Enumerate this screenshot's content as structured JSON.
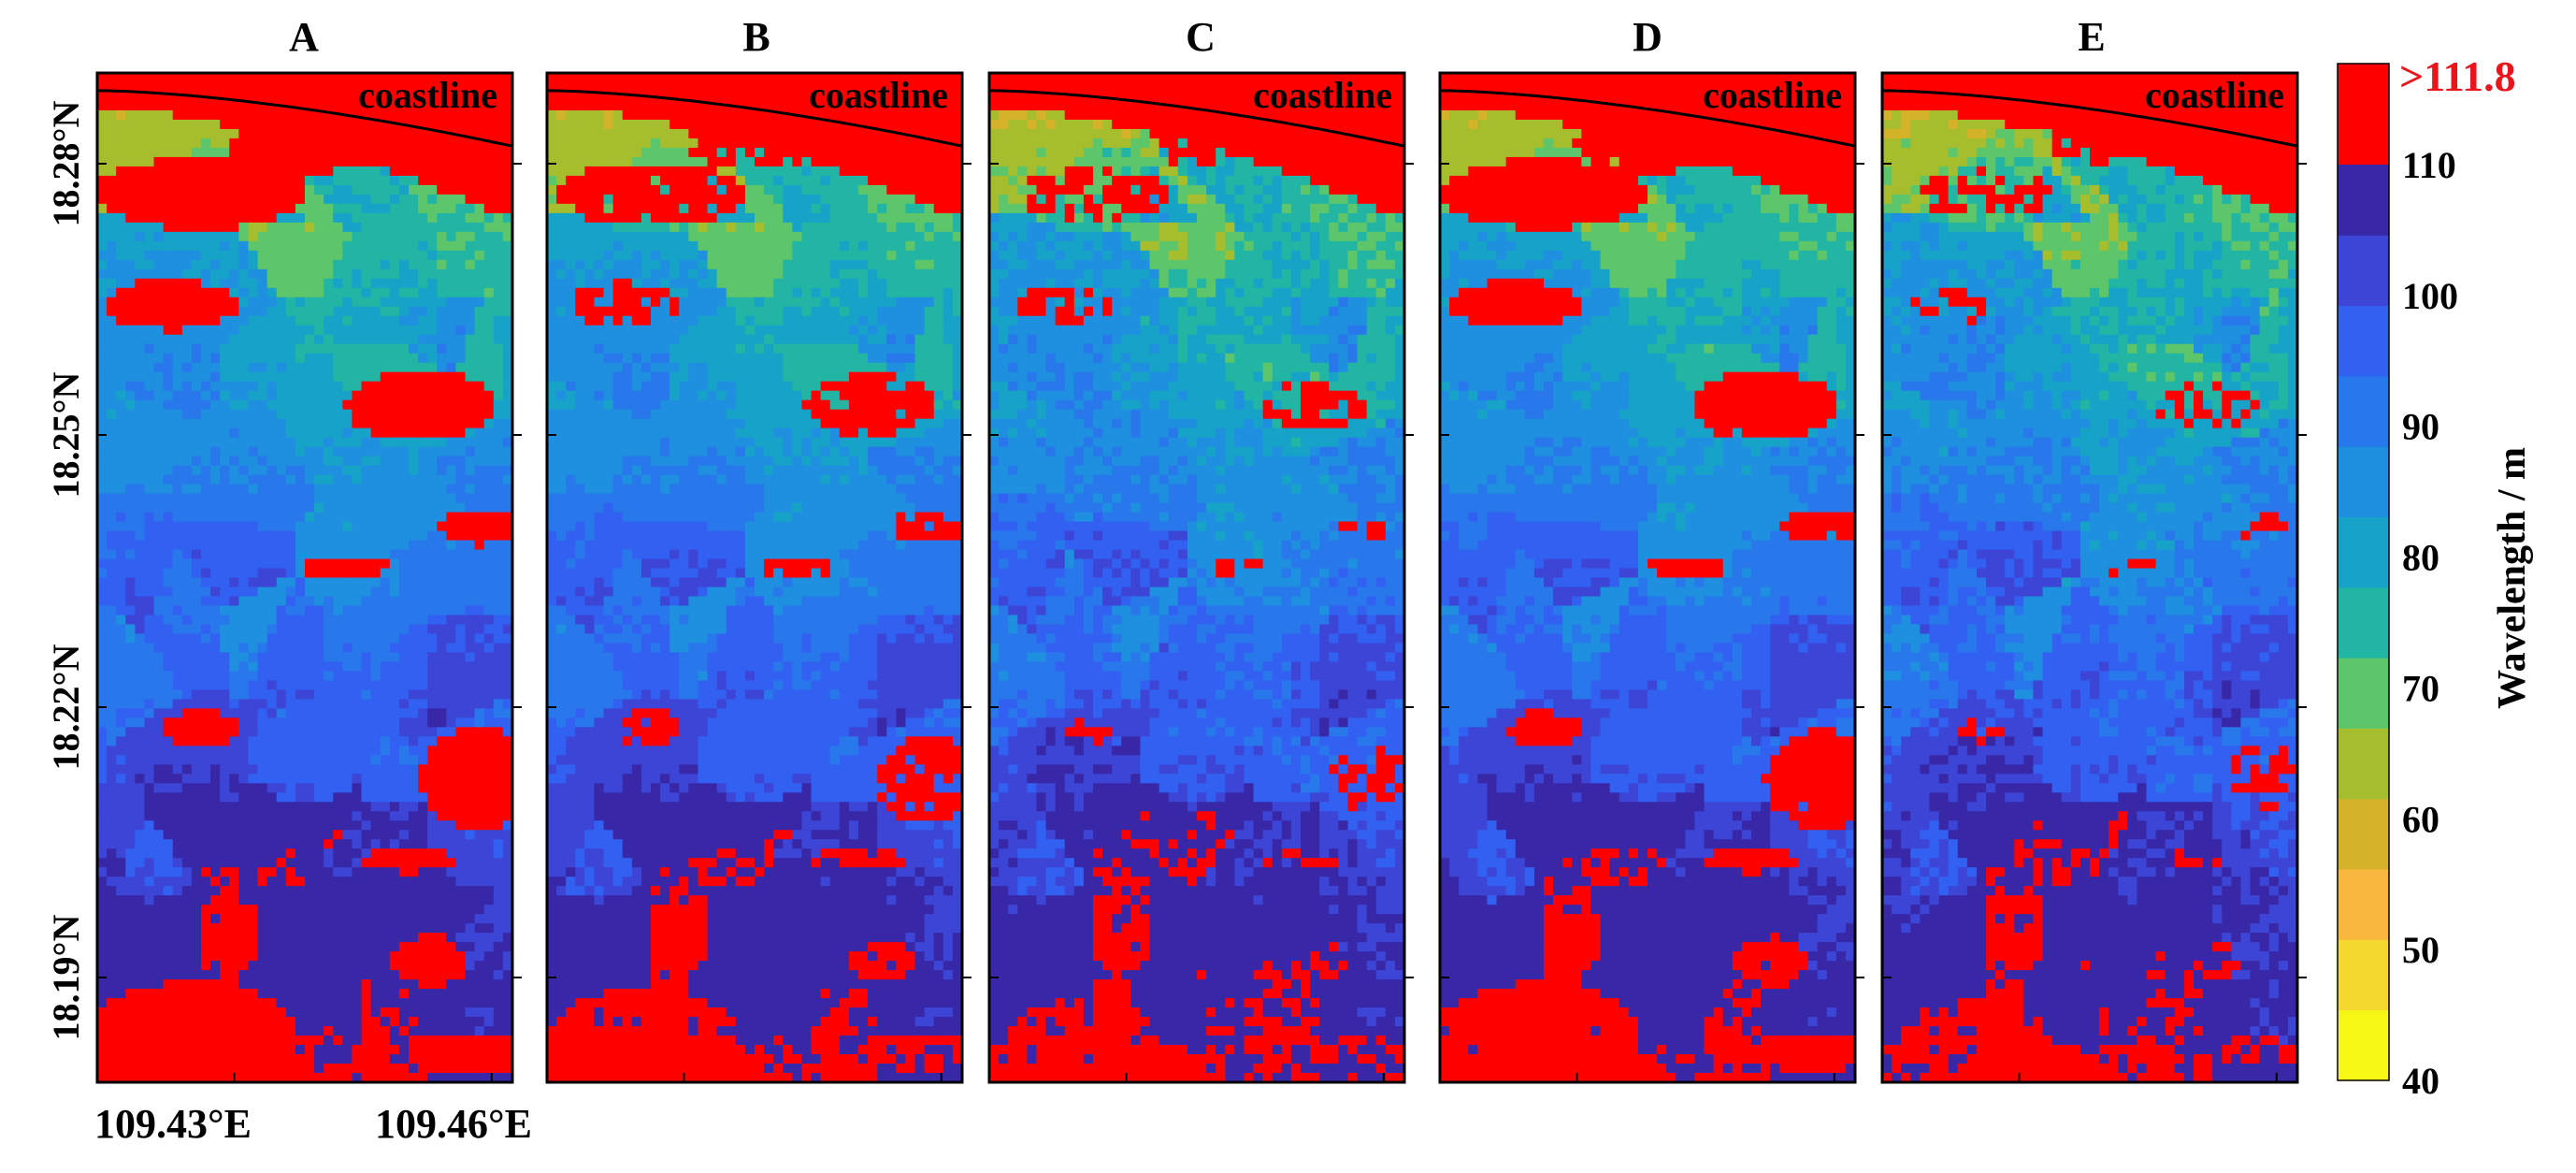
{
  "chart_data": {
    "type": "heatmap",
    "panels": [
      {
        "title": "A",
        "coast_label": "coastline",
        "variant": "A"
      },
      {
        "title": "B",
        "coast_label": "coastline",
        "variant": "B"
      },
      {
        "title": "C",
        "coast_label": "coastline",
        "variant": "C"
      },
      {
        "title": "D",
        "coast_label": "coastline",
        "variant": "D"
      },
      {
        "title": "E",
        "coast_label": "coastline",
        "variant": "E"
      }
    ],
    "y_ticks": [
      {
        "label": "18.28°N",
        "value": 18.28
      },
      {
        "label": "18.25°N",
        "value": 18.25
      },
      {
        "label": "18.22°N",
        "value": 18.22
      },
      {
        "label": "18.19°N",
        "value": 18.19
      }
    ],
    "x_ticks": [
      {
        "label": "109.43°E",
        "value": 109.43
      },
      {
        "label": "109.46°E",
        "value": 109.46
      }
    ],
    "colorbar": {
      "label": "Wavelength / m",
      "top_label": ">111.8",
      "top_label_color": "#e8151b",
      "overflow_color": "#ff0000",
      "min": 40,
      "max": 110,
      "step": 5,
      "tick_labels": [
        "40",
        "50",
        "60",
        "70",
        "80",
        "90",
        "100",
        "110"
      ],
      "colors": [
        "#f7f716",
        "#f5d82e",
        "#f8b73e",
        "#d4b22a",
        "#a6be2d",
        "#5ec66a",
        "#22b5a4",
        "#17a3c8",
        "#1f8fdf",
        "#2878ec",
        "#3261f2",
        "#3c45d6",
        "#3828a8"
      ]
    }
  }
}
